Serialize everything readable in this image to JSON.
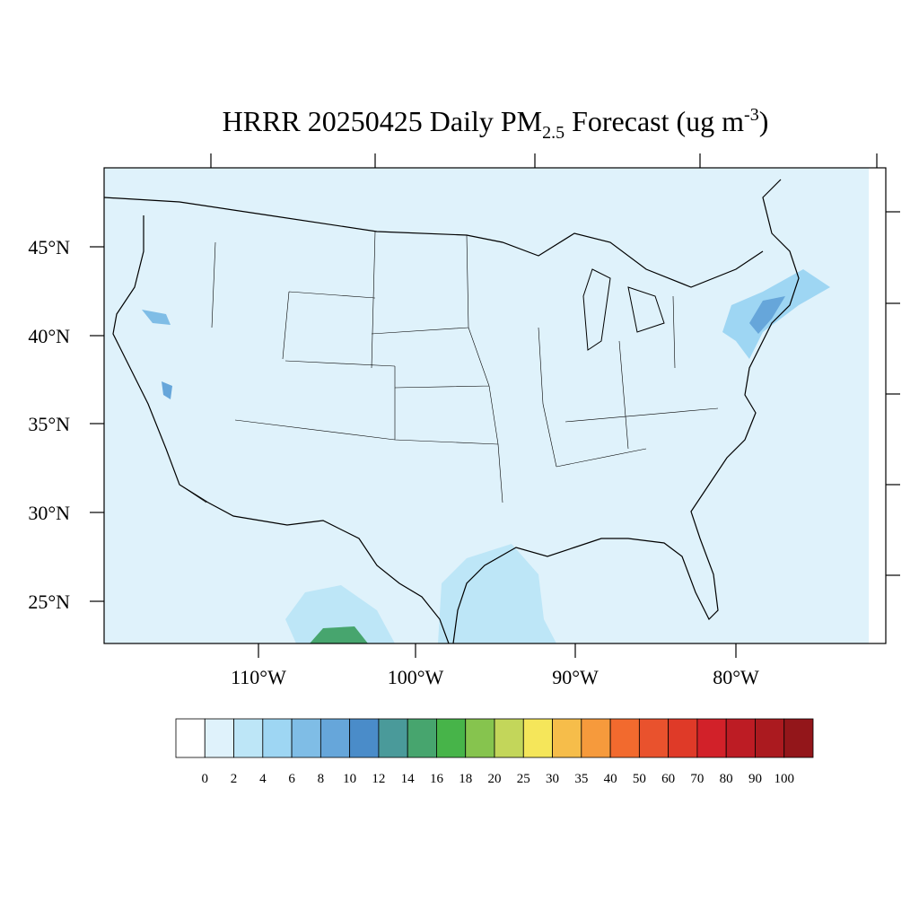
{
  "header": {
    "title": "HRRR 20250425 Daily PM",
    "title_subscript": "2.5",
    "title_units": " Forecast (ug m",
    "title_superscript": "-3",
    "title_close": ")"
  },
  "map": {
    "lat_labels": [
      "45°N",
      "40°N",
      "35°N",
      "30°N",
      "25°N"
    ],
    "lon_labels": [
      "110°W",
      "100°W",
      "90°W",
      "80°W"
    ]
  },
  "colorbar": {
    "colors": [
      "#ffffff",
      "#dff2fb",
      "#bde6f7",
      "#9ed6f3",
      "#7fbde6",
      "#66a6da",
      "#4a8cc9",
      "#4a9a9a",
      "#47a56e",
      "#47b449",
      "#86c44e",
      "#c3d65a",
      "#f5e65a",
      "#f6bd4a",
      "#f69a3c",
      "#f26a2e",
      "#e9522d",
      "#df3a28",
      "#d22129",
      "#bd1c24",
      "#ab1a1f",
      "#93161a"
    ],
    "labels": [
      0,
      2,
      4,
      6,
      8,
      10,
      12,
      14,
      16,
      18,
      20,
      25,
      30,
      35,
      40,
      50,
      60,
      70,
      80,
      90,
      100
    ]
  }
}
